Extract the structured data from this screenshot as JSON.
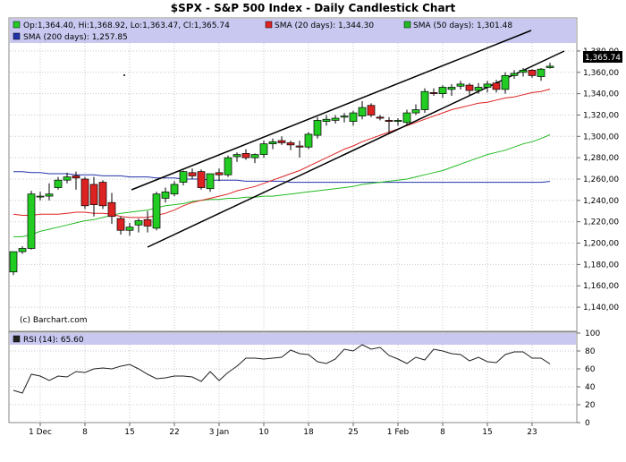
{
  "title": "$SPX - S&P 500 Index - Daily Candlestick Chart",
  "legend": {
    "ohlc": "Op:1,364.40, Hi:1,368.92, Lo:1,363.47, Cl:1,365.74",
    "sma20": "SMA (20 days): 1,344.30",
    "sma50": "SMA (50 days): 1,301.48",
    "sma200": "SMA (200 days): 1,257.85"
  },
  "watermark": "(c) Barchart.com",
  "last_price": "1,365.74",
  "rsi_label": "RSI (14): 65.60",
  "colors": {
    "up": "#22cc22",
    "down": "#dd2222",
    "sma20": "#dd2222",
    "sma50": "#22bb22",
    "sma200": "#2233aa",
    "rsi": "#222222",
    "legend_bg": "#c8c8f0",
    "grid": "#c8c8c8"
  },
  "chart_data": [
    {
      "type": "candlestick",
      "ylim": [
        1130,
        1390
      ],
      "yticks": [
        "1,380,00",
        "1,360,00",
        "1,340,00",
        "1,320,00",
        "1,300,00",
        "1,280,00",
        "1,260,00",
        "1,240,00",
        "1,220,00",
        "1,200,00",
        "1,180,00",
        "1,160,00",
        "1,140,00"
      ],
      "ytick_values": [
        1380,
        1360,
        1340,
        1320,
        1300,
        1280,
        1260,
        1240,
        1220,
        1200,
        1180,
        1160,
        1140
      ],
      "xticks": [
        "1 Dec",
        "8",
        "15",
        "22",
        "3 Jan",
        "10",
        "18",
        "25",
        "1 Feb",
        "8",
        "15",
        "23"
      ],
      "xtick_index": [
        3,
        8,
        13,
        18,
        23,
        28,
        33,
        38,
        43,
        48,
        53,
        58
      ],
      "candles": [
        {
          "o": 1173,
          "h": 1192,
          "l": 1170,
          "c": 1192
        },
        {
          "o": 1192,
          "h": 1197,
          "l": 1190,
          "c": 1195
        },
        {
          "o": 1195,
          "h": 1249,
          "l": 1194,
          "c": 1246
        },
        {
          "o": 1244,
          "h": 1248,
          "l": 1240,
          "c": 1244
        },
        {
          "o": 1244,
          "h": 1256,
          "l": 1240,
          "c": 1246
        },
        {
          "o": 1252,
          "h": 1262,
          "l": 1250,
          "c": 1259
        },
        {
          "o": 1259,
          "h": 1266,
          "l": 1256,
          "c": 1262
        },
        {
          "o": 1263,
          "h": 1267,
          "l": 1250,
          "c": 1261
        },
        {
          "o": 1260,
          "h": 1262,
          "l": 1232,
          "c": 1235
        },
        {
          "o": 1255,
          "h": 1262,
          "l": 1225,
          "c": 1236
        },
        {
          "o": 1257,
          "h": 1259,
          "l": 1232,
          "c": 1235
        },
        {
          "o": 1238,
          "h": 1247,
          "l": 1218,
          "c": 1225
        },
        {
          "o": 1223,
          "h": 1225,
          "l": 1208,
          "c": 1212
        },
        {
          "o": 1212,
          "h": 1219,
          "l": 1207,
          "c": 1215
        },
        {
          "o": 1217,
          "h": 1223,
          "l": 1210,
          "c": 1221
        },
        {
          "o": 1222,
          "h": 1230,
          "l": 1210,
          "c": 1216
        },
        {
          "o": 1214,
          "h": 1248,
          "l": 1212,
          "c": 1246
        },
        {
          "o": 1242,
          "h": 1252,
          "l": 1238,
          "c": 1248
        },
        {
          "o": 1246,
          "h": 1258,
          "l": 1244,
          "c": 1255
        },
        {
          "o": 1257,
          "h": 1268,
          "l": 1254,
          "c": 1267
        },
        {
          "o": 1266,
          "h": 1270,
          "l": 1260,
          "c": 1263
        },
        {
          "o": 1267,
          "h": 1269,
          "l": 1250,
          "c": 1252
        },
        {
          "o": 1251,
          "h": 1265,
          "l": 1248,
          "c": 1265
        },
        {
          "o": 1266,
          "h": 1270,
          "l": 1258,
          "c": 1264
        },
        {
          "o": 1264,
          "h": 1282,
          "l": 1262,
          "c": 1280
        },
        {
          "o": 1281,
          "h": 1285,
          "l": 1276,
          "c": 1283
        },
        {
          "o": 1284,
          "h": 1288,
          "l": 1278,
          "c": 1280
        },
        {
          "o": 1280,
          "h": 1284,
          "l": 1275,
          "c": 1283
        },
        {
          "o": 1283,
          "h": 1296,
          "l": 1280,
          "c": 1293
        },
        {
          "o": 1293,
          "h": 1298,
          "l": 1288,
          "c": 1295
        },
        {
          "o": 1296,
          "h": 1300,
          "l": 1292,
          "c": 1294
        },
        {
          "o": 1294,
          "h": 1296,
          "l": 1287,
          "c": 1292
        },
        {
          "o": 1291,
          "h": 1296,
          "l": 1280,
          "c": 1290
        },
        {
          "o": 1290,
          "h": 1304,
          "l": 1288,
          "c": 1302
        },
        {
          "o": 1301,
          "h": 1318,
          "l": 1298,
          "c": 1315
        },
        {
          "o": 1314,
          "h": 1320,
          "l": 1310,
          "c": 1316
        },
        {
          "o": 1315,
          "h": 1320,
          "l": 1312,
          "c": 1317
        },
        {
          "o": 1318,
          "h": 1322,
          "l": 1313,
          "c": 1319
        },
        {
          "o": 1314,
          "h": 1324,
          "l": 1310,
          "c": 1322
        },
        {
          "o": 1319,
          "h": 1333,
          "l": 1316,
          "c": 1327
        },
        {
          "o": 1329,
          "h": 1331,
          "l": 1318,
          "c": 1320
        },
        {
          "o": 1318,
          "h": 1320,
          "l": 1315,
          "c": 1317
        },
        {
          "o": 1315,
          "h": 1318,
          "l": 1303,
          "c": 1314
        },
        {
          "o": 1314,
          "h": 1317,
          "l": 1310,
          "c": 1315
        },
        {
          "o": 1313,
          "h": 1325,
          "l": 1310,
          "c": 1322
        },
        {
          "o": 1322,
          "h": 1330,
          "l": 1320,
          "c": 1325
        },
        {
          "o": 1325,
          "h": 1345,
          "l": 1322,
          "c": 1342
        },
        {
          "o": 1341,
          "h": 1345,
          "l": 1338,
          "c": 1340
        },
        {
          "o": 1340,
          "h": 1348,
          "l": 1336,
          "c": 1346
        },
        {
          "o": 1344,
          "h": 1349,
          "l": 1338,
          "c": 1346
        },
        {
          "o": 1347,
          "h": 1352,
          "l": 1344,
          "c": 1349
        },
        {
          "o": 1348,
          "h": 1350,
          "l": 1338,
          "c": 1343
        },
        {
          "o": 1343,
          "h": 1350,
          "l": 1340,
          "c": 1346
        },
        {
          "o": 1346,
          "h": 1352,
          "l": 1341,
          "c": 1349
        },
        {
          "o": 1350,
          "h": 1353,
          "l": 1341,
          "c": 1344
        },
        {
          "o": 1344,
          "h": 1360,
          "l": 1340,
          "c": 1357
        },
        {
          "o": 1357,
          "h": 1362,
          "l": 1354,
          "c": 1359
        },
        {
          "o": 1360,
          "h": 1364,
          "l": 1356,
          "c": 1362
        },
        {
          "o": 1362,
          "h": 1363,
          "l": 1355,
          "c": 1357
        },
        {
          "o": 1356,
          "h": 1364,
          "l": 1352,
          "c": 1363
        },
        {
          "o": 1364.4,
          "h": 1368.92,
          "l": 1363.47,
          "c": 1365.74
        }
      ],
      "sma20": [
        1227,
        1226,
        1226,
        1227,
        1227,
        1227,
        1228,
        1229,
        1229,
        1228,
        1228,
        1227,
        1225,
        1224,
        1224,
        1224,
        1226,
        1228,
        1231,
        1235,
        1238,
        1240,
        1242,
        1244,
        1246,
        1249,
        1251,
        1253,
        1256,
        1259,
        1262,
        1265,
        1268,
        1272,
        1276,
        1280,
        1284,
        1288,
        1291,
        1295,
        1298,
        1301,
        1304,
        1307,
        1310,
        1313,
        1316,
        1319,
        1322,
        1325,
        1327,
        1329,
        1331,
        1332,
        1334,
        1336,
        1337,
        1339,
        1341,
        1342,
        1344.3
      ],
      "sma50": [
        1206,
        1206,
        1208,
        1211,
        1213,
        1215,
        1217,
        1219,
        1221,
        1222,
        1224,
        1226,
        1228,
        1229,
        1230,
        1231,
        1233,
        1235,
        1236,
        1237,
        1239,
        1240,
        1241,
        1241,
        1242,
        1242,
        1243,
        1243,
        1244,
        1244,
        1245,
        1246,
        1247,
        1248,
        1249,
        1250,
        1251,
        1252,
        1253,
        1255,
        1256,
        1257,
        1258,
        1259,
        1260,
        1262,
        1264,
        1266,
        1268,
        1271,
        1274,
        1277,
        1280,
        1283,
        1285,
        1287,
        1290,
        1293,
        1295,
        1298,
        1301.48
      ],
      "sma200": [
        1267,
        1267,
        1266,
        1266,
        1265,
        1265,
        1265,
        1264,
        1264,
        1264,
        1263,
        1263,
        1263,
        1262,
        1262,
        1262,
        1261,
        1261,
        1261,
        1260,
        1260,
        1260,
        1259,
        1259,
        1259,
        1259,
        1258,
        1258,
        1258,
        1258,
        1258,
        1257,
        1257,
        1257,
        1257,
        1257,
        1257,
        1257,
        1257,
        1257,
        1257,
        1257,
        1257,
        1257,
        1257,
        1257,
        1257,
        1257,
        1257,
        1257,
        1257,
        1257,
        1257,
        1257,
        1257,
        1257,
        1257,
        1257,
        1257,
        1257,
        1257.85
      ]
    },
    {
      "type": "line",
      "ylim": [
        0,
        100
      ],
      "yticks": [
        "100",
        "80",
        "60",
        "40",
        "20",
        "0"
      ],
      "ytick_values": [
        100,
        80,
        60,
        40,
        20,
        0
      ],
      "rsi": [
        36,
        33,
        54,
        52,
        47,
        52,
        51,
        57,
        56,
        60,
        61,
        60,
        63,
        65,
        60,
        54,
        49,
        50,
        52,
        52,
        51,
        46,
        57,
        47,
        56,
        63,
        72,
        72,
        71,
        72,
        73,
        81,
        77,
        76,
        68,
        66,
        71,
        82,
        80,
        87,
        82,
        84,
        75,
        71,
        66,
        73,
        70,
        82,
        80,
        77,
        76,
        69,
        73,
        68,
        67,
        76,
        79,
        79,
        72,
        72,
        65.6
      ]
    }
  ]
}
